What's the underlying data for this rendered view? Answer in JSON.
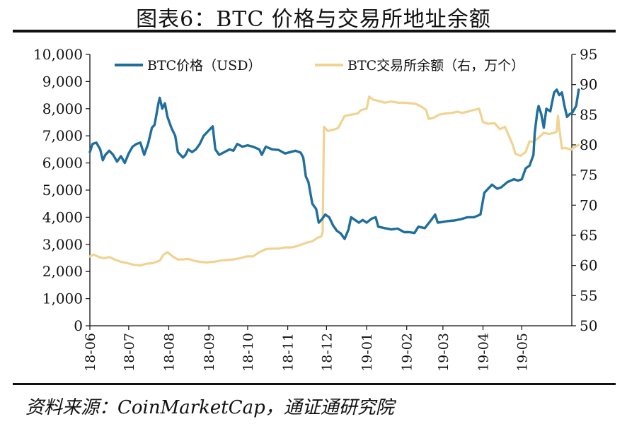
{
  "title": "图表6：BTC 价格与交易所地址余额",
  "source": "资料来源：CoinMarketCap，通证通研究院",
  "chart_data": {
    "type": "line",
    "x_ticks": [
      "18-06",
      "18-07",
      "18-08",
      "18-09",
      "18-10",
      "18-11",
      "18-12",
      "19-01",
      "19-02",
      "19-03",
      "19-04",
      "19-05"
    ],
    "x_range": [
      "2018-06-01",
      "2019-06-01"
    ],
    "y_left": {
      "min": 0,
      "max": 10000,
      "ticks": [
        "0",
        "1,000",
        "2,000",
        "3,000",
        "4,000",
        "5,000",
        "6,000",
        "7,000",
        "8,000",
        "9,000",
        "10,000"
      ]
    },
    "y_right": {
      "min": 50,
      "max": 95,
      "ticks": [
        "50",
        "55",
        "60",
        "65",
        "70",
        "75",
        "80",
        "85",
        "90",
        "95"
      ]
    },
    "legend_placement": "top",
    "series": [
      {
        "name": "BTC价格（USD）",
        "axis": "left",
        "color": "#1f6e9c",
        "points": [
          [
            "2018-06-01",
            6400
          ],
          [
            "2018-06-03",
            6700
          ],
          [
            "2018-06-06",
            6750
          ],
          [
            "2018-06-09",
            6500
          ],
          [
            "2018-06-11",
            6100
          ],
          [
            "2018-06-13",
            6300
          ],
          [
            "2018-06-16",
            6450
          ],
          [
            "2018-06-19",
            6300
          ],
          [
            "2018-06-22",
            6050
          ],
          [
            "2018-06-25",
            6250
          ],
          [
            "2018-06-28",
            6000
          ],
          [
            "2018-07-01",
            6350
          ],
          [
            "2018-07-04",
            6600
          ],
          [
            "2018-07-07",
            6700
          ],
          [
            "2018-07-10",
            6750
          ],
          [
            "2018-07-13",
            6300
          ],
          [
            "2018-07-16",
            6700
          ],
          [
            "2018-07-19",
            7300
          ],
          [
            "2018-07-21",
            7400
          ],
          [
            "2018-07-24",
            8200
          ],
          [
            "2018-07-25",
            8400
          ],
          [
            "2018-07-27",
            8000
          ],
          [
            "2018-07-29",
            8200
          ],
          [
            "2018-07-31",
            7700
          ],
          [
            "2018-08-03",
            7300
          ],
          [
            "2018-08-06",
            7000
          ],
          [
            "2018-08-08",
            6400
          ],
          [
            "2018-08-10",
            6300
          ],
          [
            "2018-08-12",
            6200
          ],
          [
            "2018-08-14",
            6300
          ],
          [
            "2018-08-16",
            6500
          ],
          [
            "2018-08-19",
            6400
          ],
          [
            "2018-08-22",
            6500
          ],
          [
            "2018-08-25",
            6700
          ],
          [
            "2018-08-28",
            7000
          ],
          [
            "2018-09-01",
            7200
          ],
          [
            "2018-09-04",
            7350
          ],
          [
            "2018-09-06",
            6500
          ],
          [
            "2018-09-09",
            6300
          ],
          [
            "2018-09-13",
            6400
          ],
          [
            "2018-09-17",
            6500
          ],
          [
            "2018-09-20",
            6450
          ],
          [
            "2018-09-23",
            6700
          ],
          [
            "2018-09-27",
            6600
          ],
          [
            "2018-10-01",
            6650
          ],
          [
            "2018-10-05",
            6600
          ],
          [
            "2018-10-10",
            6500
          ],
          [
            "2018-10-12",
            6300
          ],
          [
            "2018-10-15",
            6600
          ],
          [
            "2018-10-20",
            6500
          ],
          [
            "2018-10-25",
            6480
          ],
          [
            "2018-10-30",
            6350
          ],
          [
            "2018-11-03",
            6400
          ],
          [
            "2018-11-07",
            6450
          ],
          [
            "2018-11-11",
            6380
          ],
          [
            "2018-11-13",
            6200
          ],
          [
            "2018-11-15",
            5500
          ],
          [
            "2018-11-17",
            5300
          ],
          [
            "2018-11-20",
            4500
          ],
          [
            "2018-11-23",
            4300
          ],
          [
            "2018-11-25",
            3800
          ],
          [
            "2018-11-27",
            3900
          ],
          [
            "2018-11-30",
            4100
          ],
          [
            "2018-12-03",
            4000
          ],
          [
            "2018-12-06",
            3700
          ],
          [
            "2018-12-09",
            3500
          ],
          [
            "2018-12-12",
            3400
          ],
          [
            "2018-12-15",
            3200
          ],
          [
            "2018-12-18",
            3550
          ],
          [
            "2018-12-20",
            4000
          ],
          [
            "2018-12-23",
            3900
          ],
          [
            "2018-12-26",
            3800
          ],
          [
            "2018-12-29",
            3900
          ],
          [
            "2019-01-01",
            3800
          ],
          [
            "2019-01-05",
            3950
          ],
          [
            "2019-01-08",
            4000
          ],
          [
            "2019-01-10",
            3650
          ],
          [
            "2019-01-15",
            3600
          ],
          [
            "2019-01-20",
            3550
          ],
          [
            "2019-01-25",
            3580
          ],
          [
            "2019-01-30",
            3450
          ],
          [
            "2019-02-03",
            3450
          ],
          [
            "2019-02-07",
            3420
          ],
          [
            "2019-02-10",
            3650
          ],
          [
            "2019-02-15",
            3600
          ],
          [
            "2019-02-20",
            3900
          ],
          [
            "2019-02-23",
            4100
          ],
          [
            "2019-02-25",
            3800
          ],
          [
            "2019-02-28",
            3820
          ],
          [
            "2019-03-05",
            3860
          ],
          [
            "2019-03-10",
            3880
          ],
          [
            "2019-03-15",
            3930
          ],
          [
            "2019-03-20",
            4000
          ],
          [
            "2019-03-25",
            4000
          ],
          [
            "2019-03-30",
            4100
          ],
          [
            "2019-04-02",
            4900
          ],
          [
            "2019-04-05",
            5050
          ],
          [
            "2019-04-08",
            5200
          ],
          [
            "2019-04-12",
            5050
          ],
          [
            "2019-04-15",
            5100
          ],
          [
            "2019-04-20",
            5300
          ],
          [
            "2019-04-25",
            5400
          ],
          [
            "2019-04-28",
            5350
          ],
          [
            "2019-05-01",
            5400
          ],
          [
            "2019-05-04",
            5800
          ],
          [
            "2019-05-07",
            5900
          ],
          [
            "2019-05-10",
            6300
          ],
          [
            "2019-05-11",
            7100
          ],
          [
            "2019-05-13",
            7900
          ],
          [
            "2019-05-14",
            8100
          ],
          [
            "2019-05-16",
            7800
          ],
          [
            "2019-05-18",
            7300
          ],
          [
            "2019-05-20",
            8000
          ],
          [
            "2019-05-23",
            7900
          ],
          [
            "2019-05-26",
            8600
          ],
          [
            "2019-05-28",
            8700
          ],
          [
            "2019-05-30",
            8500
          ],
          [
            "2019-06-01",
            8600
          ],
          [
            "2019-06-03",
            8100
          ],
          [
            "2019-06-05",
            7700
          ],
          [
            "2019-06-07",
            7800
          ],
          [
            "2019-06-09",
            7850
          ],
          [
            "2019-06-12",
            8100
          ],
          [
            "2019-06-14",
            8700
          ]
        ]
      },
      {
        "name": "BTC交易所余额（右，万个）",
        "axis": "right",
        "color": "#f0d391",
        "points": [
          [
            "2018-06-01",
            61.5
          ],
          [
            "2018-06-04",
            61.8
          ],
          [
            "2018-06-08",
            61.4
          ],
          [
            "2018-06-12",
            61.2
          ],
          [
            "2018-06-16",
            61.4
          ],
          [
            "2018-06-20",
            61.0
          ],
          [
            "2018-06-25",
            60.6
          ],
          [
            "2018-06-30",
            60.4
          ],
          [
            "2018-07-05",
            60.1
          ],
          [
            "2018-07-10",
            60.0
          ],
          [
            "2018-07-15",
            60.3
          ],
          [
            "2018-07-20",
            60.4
          ],
          [
            "2018-07-25",
            60.8
          ],
          [
            "2018-07-28",
            61.8
          ],
          [
            "2018-07-31",
            62.2
          ],
          [
            "2018-08-04",
            61.5
          ],
          [
            "2018-08-08",
            61.0
          ],
          [
            "2018-08-12",
            61.0
          ],
          [
            "2018-08-16",
            61.1
          ],
          [
            "2018-08-20",
            60.8
          ],
          [
            "2018-08-25",
            60.6
          ],
          [
            "2018-08-30",
            60.5
          ],
          [
            "2018-09-05",
            60.6
          ],
          [
            "2018-09-10",
            60.8
          ],
          [
            "2018-09-15",
            60.9
          ],
          [
            "2018-09-20",
            61.0
          ],
          [
            "2018-09-25",
            61.2
          ],
          [
            "2018-09-30",
            61.5
          ],
          [
            "2018-10-05",
            61.5
          ],
          [
            "2018-10-10",
            62.2
          ],
          [
            "2018-10-15",
            62.7
          ],
          [
            "2018-10-20",
            62.8
          ],
          [
            "2018-10-25",
            62.8
          ],
          [
            "2018-10-30",
            63.0
          ],
          [
            "2018-11-04",
            63.0
          ],
          [
            "2018-11-08",
            63.2
          ],
          [
            "2018-11-12",
            63.5
          ],
          [
            "2018-11-16",
            63.8
          ],
          [
            "2018-11-20",
            64.0
          ],
          [
            "2018-11-24",
            64.6
          ],
          [
            "2018-11-27",
            64.8
          ],
          [
            "2018-11-28",
            65.5
          ],
          [
            "2018-11-29",
            83.0
          ],
          [
            "2018-12-02",
            82.3
          ],
          [
            "2018-12-06",
            82.5
          ],
          [
            "2018-12-10",
            82.8
          ],
          [
            "2018-12-13",
            84.0
          ],
          [
            "2018-12-15",
            84.8
          ],
          [
            "2018-12-20",
            85.0
          ],
          [
            "2018-12-25",
            85.2
          ],
          [
            "2018-12-28",
            85.8
          ],
          [
            "2019-01-01",
            86.0
          ],
          [
            "2019-01-03",
            88.0
          ],
          [
            "2019-01-06",
            87.5
          ],
          [
            "2019-01-10",
            87.3
          ],
          [
            "2019-01-15",
            87.0
          ],
          [
            "2019-01-20",
            87.2
          ],
          [
            "2019-01-25",
            87.0
          ],
          [
            "2019-01-30",
            87.0
          ],
          [
            "2019-02-04",
            86.9
          ],
          [
            "2019-02-08",
            86.8
          ],
          [
            "2019-02-12",
            86.4
          ],
          [
            "2019-02-16",
            85.8
          ],
          [
            "2019-02-18",
            84.3
          ],
          [
            "2019-02-22",
            84.5
          ],
          [
            "2019-02-26",
            85.0
          ],
          [
            "2019-03-03",
            85.2
          ],
          [
            "2019-03-08",
            85.3
          ],
          [
            "2019-03-12",
            85.5
          ],
          [
            "2019-03-16",
            85.3
          ],
          [
            "2019-03-20",
            85.5
          ],
          [
            "2019-03-25",
            85.8
          ],
          [
            "2019-03-29",
            86.0
          ],
          [
            "2019-04-01",
            83.8
          ],
          [
            "2019-04-05",
            83.5
          ],
          [
            "2019-04-10",
            83.6
          ],
          [
            "2019-04-14",
            82.6
          ],
          [
            "2019-04-18",
            83.0
          ],
          [
            "2019-04-22",
            81.0
          ],
          [
            "2019-04-24",
            80.0
          ],
          [
            "2019-04-26",
            78.5
          ],
          [
            "2019-04-30",
            78.2
          ],
          [
            "2019-05-04",
            78.8
          ],
          [
            "2019-05-07",
            80.6
          ],
          [
            "2019-05-10",
            80.5
          ],
          [
            "2019-05-14",
            81.2
          ],
          [
            "2019-05-18",
            82.0
          ],
          [
            "2019-05-22",
            81.8
          ],
          [
            "2019-05-26",
            82.0
          ],
          [
            "2019-05-28",
            82.2
          ],
          [
            "2019-05-29",
            84.8
          ],
          [
            "2019-05-30",
            82.8
          ],
          [
            "2019-06-01",
            79.4
          ],
          [
            "2019-06-04",
            79.5
          ],
          [
            "2019-06-08",
            79.2
          ],
          [
            "2019-06-12",
            79.8
          ],
          [
            "2019-06-14",
            80.0
          ]
        ]
      }
    ]
  }
}
